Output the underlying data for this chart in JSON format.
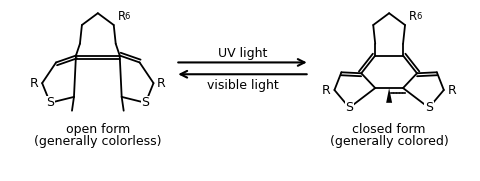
{
  "background_color": "#ffffff",
  "arrow_color": "#000000",
  "text_color": "#000000",
  "uv_label": "UV light",
  "vis_label": "visible light",
  "open_form_label": "open form",
  "open_form_sub": "(generally colorless)",
  "closed_form_label": "closed form",
  "closed_form_sub": "(generally colored)",
  "label_fontsize": 9,
  "arrow_fontsize": 9,
  "sub_fontsize": 9,
  "figwidth": 4.8,
  "figheight": 1.81,
  "dpi": 100,
  "lw": 1.3
}
